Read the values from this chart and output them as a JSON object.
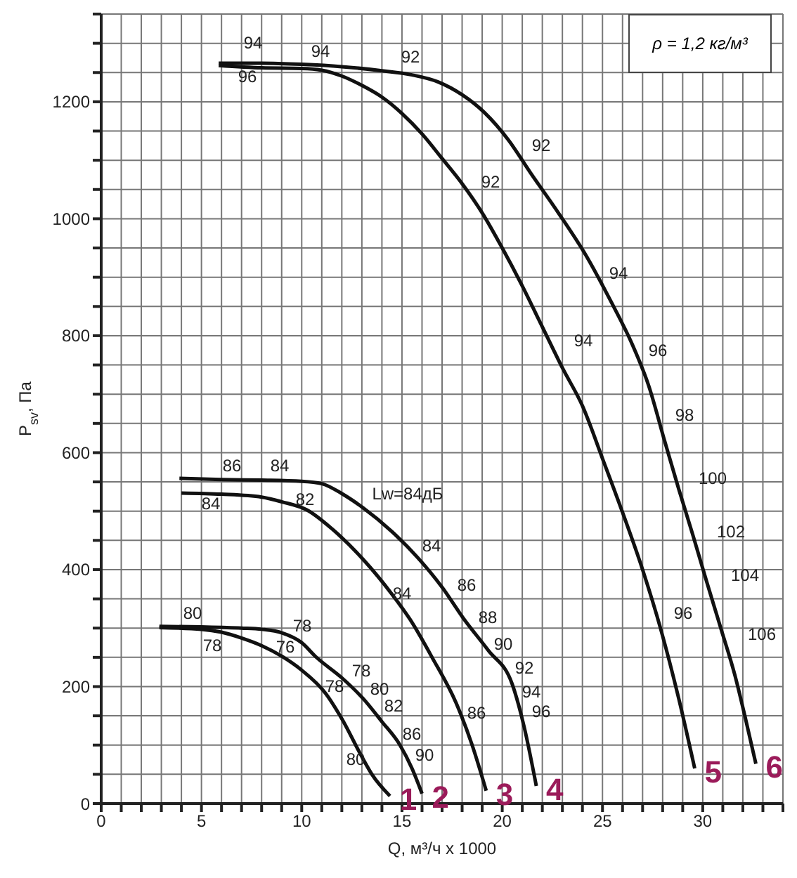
{
  "chart_data": {
    "type": "line",
    "xlabel": "Q, м³/ч x 1000",
    "ylabel": "P$_{sv}$, Па",
    "xlim": [
      0,
      34
    ],
    "ylim": [
      0,
      1350
    ],
    "xticks": [
      0,
      {
        "value": 1,
        "label": null
      },
      {
        "value": 2,
        "label": null
      },
      {
        "value": 3,
        "label": null
      },
      {
        "value": 4,
        "label": null
      },
      5,
      {
        "value": 6,
        "label": null
      },
      {
        "value": 7,
        "label": null
      },
      {
        "value": 8,
        "label": null
      },
      {
        "value": 9,
        "label": null
      },
      10,
      {
        "value": 11,
        "label": null
      },
      {
        "value": 12,
        "label": null
      },
      {
        "value": 13,
        "label": null
      },
      {
        "value": 14,
        "label": null
      },
      15,
      {
        "value": 16,
        "label": null
      },
      {
        "value": 17,
        "label": null
      },
      {
        "value": 18,
        "label": null
      },
      {
        "value": 19,
        "label": null
      },
      20,
      {
        "value": 21,
        "label": null
      },
      {
        "value": 22,
        "label": null
      },
      {
        "value": 23,
        "label": null
      },
      {
        "value": 24,
        "label": null
      },
      25,
      {
        "value": 26,
        "label": null
      },
      {
        "value": 27,
        "label": null
      },
      {
        "value": 28,
        "label": null
      },
      {
        "value": 29,
        "label": null
      },
      30,
      {
        "value": 31,
        "label": null
      },
      {
        "value": 32,
        "label": null
      },
      {
        "value": 33,
        "label": null
      },
      {
        "value": 34,
        "label": null
      }
    ],
    "yticks": [
      0,
      {
        "value": 50,
        "label": null
      },
      {
        "value": 100,
        "label": null
      },
      {
        "value": 150,
        "label": null
      },
      200,
      {
        "value": 250,
        "label": null
      },
      {
        "value": 300,
        "label": null
      },
      {
        "value": 350,
        "label": null
      },
      400,
      {
        "value": 450,
        "label": null
      },
      {
        "value": 500,
        "label": null
      },
      {
        "value": 550,
        "label": null
      },
      600,
      {
        "value": 650,
        "label": null
      },
      {
        "value": 700,
        "label": null
      },
      {
        "value": 750,
        "label": null
      },
      800,
      {
        "value": 850,
        "label": null
      },
      {
        "value": 900,
        "label": null
      },
      {
        "value": 950,
        "label": null
      },
      1000,
      {
        "value": 1050,
        "label": null
      },
      {
        "value": 1100,
        "label": null
      },
      {
        "value": 1150,
        "label": null
      },
      1200,
      {
        "value": 1250,
        "label": null
      },
      {
        "value": 1300,
        "label": null
      },
      {
        "value": 1350,
        "label": null
      }
    ],
    "grid": true,
    "marker": "none",
    "line_style": "solid",
    "series": [
      {
        "name": "1",
        "color": "#111111",
        "x": [
          2.9,
          5,
          6,
          7,
          8,
          9,
          10,
          11.2,
          12,
          13,
          13.5,
          14.4
        ],
        "values": [
          301,
          298,
          293,
          283,
          270,
          252,
          228,
          188,
          145,
          80,
          50,
          13
        ]
      },
      {
        "name": "2",
        "color": "#111111",
        "x": [
          2.9,
          5,
          7,
          8,
          9,
          10,
          10.7,
          12,
          13.05,
          14,
          14.9,
          15.5,
          16
        ],
        "values": [
          303,
          302,
          300,
          298,
          292,
          275,
          251,
          215,
          180,
          140,
          100,
          60,
          17
        ]
      },
      {
        "name": "3",
        "color": "#111111",
        "x": [
          4,
          6,
          8,
          9,
          10.26,
          11.5,
          13.05,
          14.5,
          15.4,
          16.5,
          17.7,
          18.5,
          19.2
        ],
        "values": [
          531,
          529,
          524,
          516,
          502,
          470,
          418,
          358,
          315,
          250,
          172,
          100,
          22
        ]
      },
      {
        "name": "4",
        "color": "#111111",
        "x": [
          3.9,
          6,
          8,
          10,
          11,
          12,
          13.05,
          14.5,
          15.8,
          17,
          18.1,
          19.3,
          20.5,
          21.1,
          21.7
        ],
        "values": [
          556,
          554,
          553,
          551,
          547,
          530,
          506,
          465,
          420,
          370,
          315,
          262,
          204,
          130,
          30
        ]
      },
      {
        "name": "5",
        "color": "#111111",
        "x": [
          5.86,
          8,
          10,
          11,
          12,
          13,
          14,
          15,
          16,
          17,
          18,
          19,
          20,
          21,
          22,
          23,
          24,
          25,
          26,
          27,
          27.9,
          28.8,
          29.6
        ],
        "values": [
          1262,
          1258,
          1257,
          1254,
          1244,
          1228,
          1208,
          1180,
          1145,
          1103,
          1060,
          1010,
          950,
          885,
          815,
          745,
          680,
          590,
          498,
          400,
          299,
          180,
          60
        ]
      },
      {
        "name": "6",
        "color": "#111111",
        "x": [
          5.86,
          8,
          10,
          12,
          14,
          15.5,
          16.8,
          18,
          19.1,
          20.3,
          21.4,
          22.8,
          24.2,
          25.4,
          26.5,
          27.3,
          28.1,
          28.8,
          29.5,
          30.2,
          30.9,
          31.6,
          32.1,
          32.65
        ],
        "values": [
          1266,
          1266,
          1264,
          1260,
          1253,
          1246,
          1234,
          1212,
          1182,
          1135,
          1079,
          1010,
          936,
          860,
          784,
          715,
          620,
          538,
          460,
          379,
          300,
          220,
          150,
          68
        ]
      }
    ],
    "annotations": [
      "ρ = 1,2 кг/м³",
      "94",
      "96",
      "94",
      "92",
      "92",
      "92",
      "94",
      "94",
      "96",
      "98",
      "100",
      "102",
      "104",
      "106",
      "96",
      "86",
      "84",
      "84",
      "82",
      "Lw=84дБ",
      "84",
      "86",
      "88",
      "90",
      "92",
      "94",
      "96",
      "84",
      "86",
      "80",
      "78",
      "78",
      "76",
      "78",
      "78",
      "80",
      "82",
      "86",
      "90",
      "80"
    ]
  }
}
